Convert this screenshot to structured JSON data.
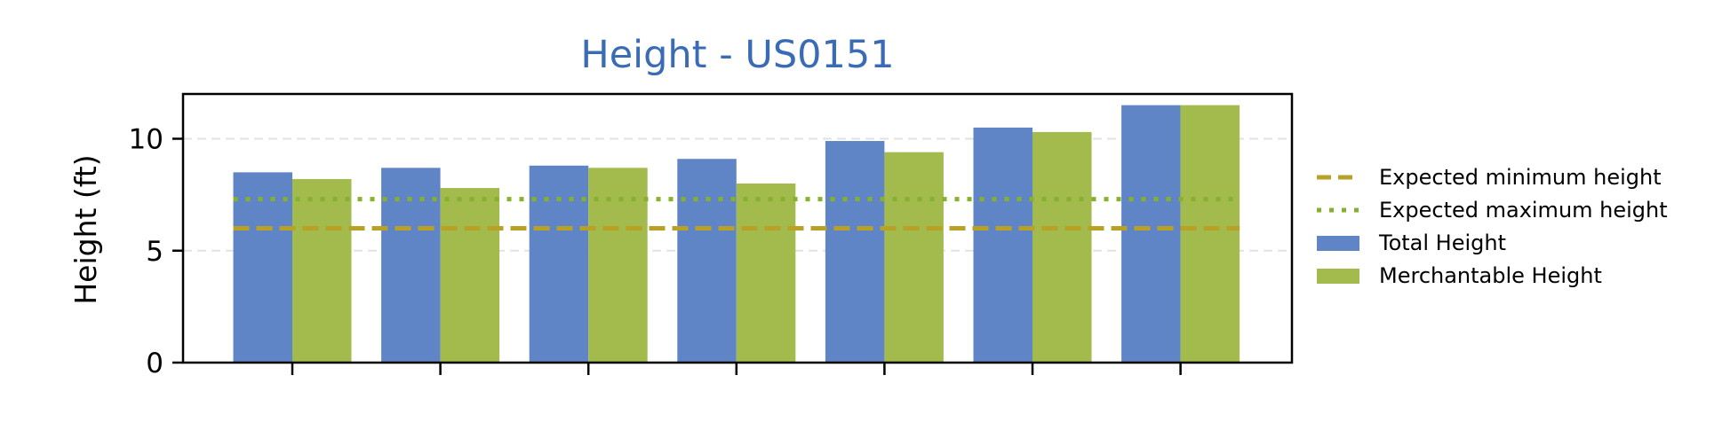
{
  "chart_data": {
    "type": "bar",
    "title": "Height - US0151",
    "xlabel": "",
    "ylabel": "Height (ft)",
    "ylim": [
      0,
      12
    ],
    "yticks": [
      0,
      5,
      10
    ],
    "categories": [
      "",
      "",
      "",
      "",
      "",
      "",
      ""
    ],
    "series": [
      {
        "name": "Total Height",
        "color": "#6085c6",
        "values": [
          8.5,
          8.7,
          8.8,
          9.1,
          9.9,
          10.5,
          11.5
        ]
      },
      {
        "name": "Merchantable Height",
        "color": "#a2bb4c",
        "values": [
          8.2,
          7.8,
          8.7,
          8.0,
          9.4,
          10.3,
          11.5
        ]
      }
    ],
    "reference_lines": [
      {
        "name": "Expected minimum height",
        "value": 6.0,
        "color": "#b8a125",
        "style": "dashed"
      },
      {
        "name": "Expected maximum height",
        "value": 7.3,
        "color": "#86b12e",
        "style": "dotted"
      }
    ],
    "legend_order": [
      "Expected minimum height",
      "Expected maximum height",
      "Total Height",
      "Merchantable Height"
    ],
    "legend_position": "right",
    "grid": "horizontal, light dashed",
    "title_color": "#3a6bb5"
  }
}
